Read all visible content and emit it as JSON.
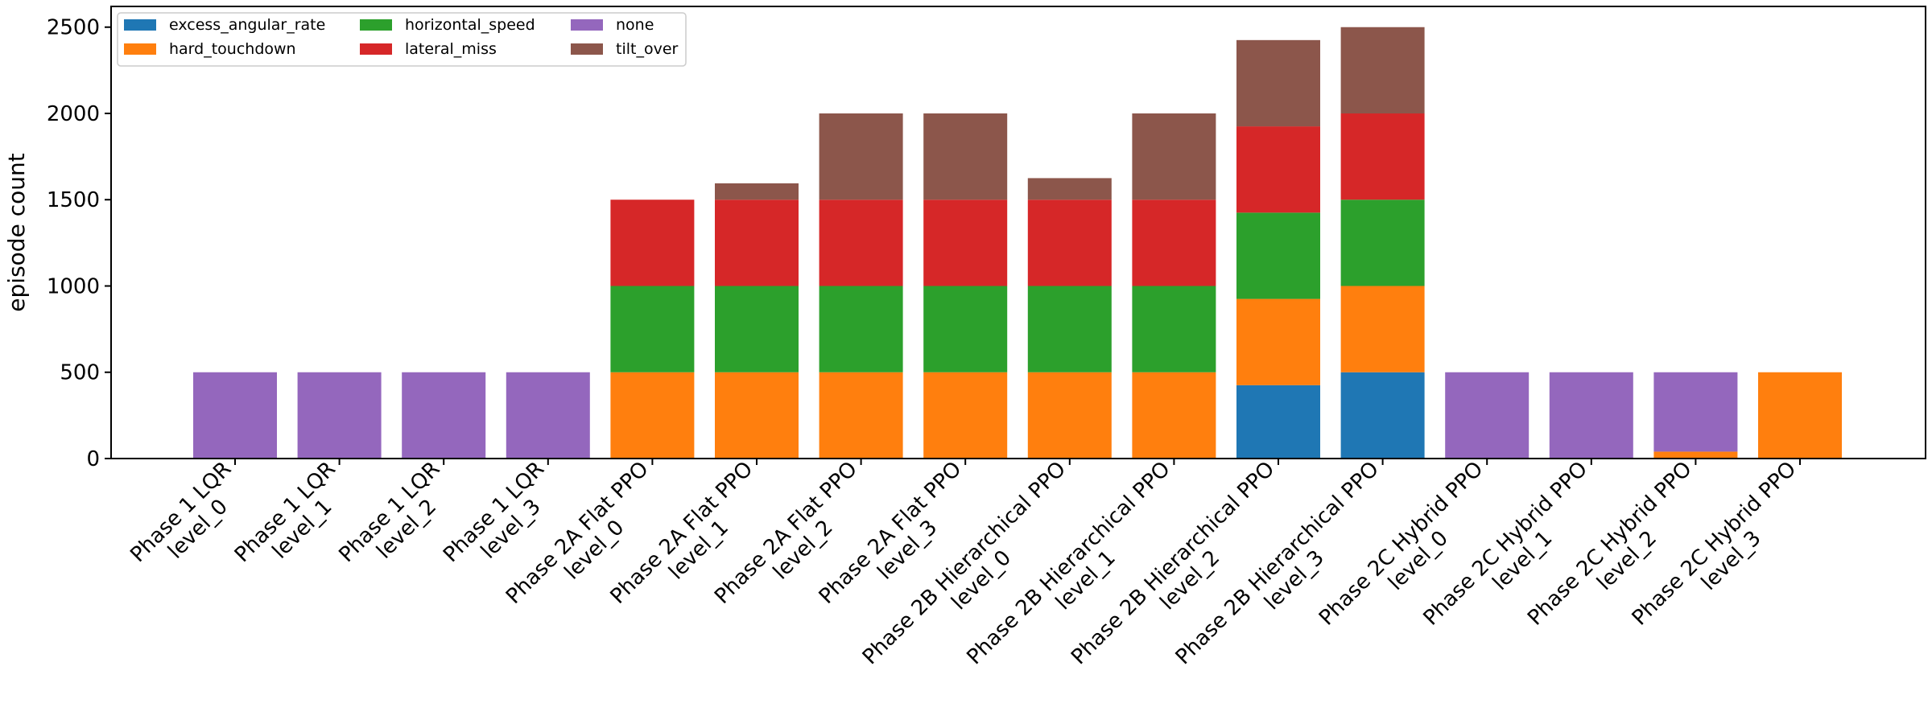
{
  "chart_data": {
    "type": "bar",
    "stacked": true,
    "ylabel": "episode count",
    "xlabel": "",
    "title": "",
    "ylim": [
      0,
      2620
    ],
    "yticks": [
      0,
      500,
      1000,
      1500,
      2000,
      2500
    ],
    "grid": false,
    "legend_position": "top-left",
    "categories": [
      [
        "Phase 1 LQR",
        "level_0"
      ],
      [
        "Phase 1 LQR",
        "level_1"
      ],
      [
        "Phase 1 LQR",
        "level_2"
      ],
      [
        "Phase 1 LQR",
        "level_3"
      ],
      [
        "Phase 2A Flat PPO",
        "level_0"
      ],
      [
        "Phase 2A Flat PPO",
        "level_1"
      ],
      [
        "Phase 2A Flat PPO",
        "level_2"
      ],
      [
        "Phase 2A Flat PPO",
        "level_3"
      ],
      [
        "Phase 2B Hierarchical PPO",
        "level_0"
      ],
      [
        "Phase 2B Hierarchical PPO",
        "level_1"
      ],
      [
        "Phase 2B Hierarchical PPO",
        "level_2"
      ],
      [
        "Phase 2B Hierarchical PPO",
        "level_3"
      ],
      [
        "Phase 2C Hybrid PPO",
        "level_0"
      ],
      [
        "Phase 2C Hybrid PPO",
        "level_1"
      ],
      [
        "Phase 2C Hybrid PPO",
        "level_2"
      ],
      [
        "Phase 2C Hybrid PPO",
        "level_3"
      ]
    ],
    "series": [
      {
        "name": "excess_angular_rate",
        "color": "#1f77b4",
        "values": [
          0,
          0,
          0,
          0,
          0,
          0,
          0,
          0,
          0,
          0,
          425,
          500,
          0,
          0,
          0,
          0
        ]
      },
      {
        "name": "hard_touchdown",
        "color": "#ff7f0e",
        "values": [
          0,
          0,
          0,
          0,
          500,
          500,
          500,
          500,
          500,
          500,
          500,
          500,
          0,
          0,
          40,
          500
        ]
      },
      {
        "name": "horizontal_speed",
        "color": "#2ca02c",
        "values": [
          0,
          0,
          0,
          0,
          500,
          500,
          500,
          500,
          500,
          500,
          500,
          500,
          0,
          0,
          0,
          0
        ]
      },
      {
        "name": "lateral_miss",
        "color": "#d62728",
        "values": [
          0,
          0,
          0,
          0,
          500,
          500,
          500,
          500,
          500,
          500,
          500,
          500,
          0,
          0,
          0,
          0
        ]
      },
      {
        "name": "none",
        "color": "#9467bd",
        "values": [
          500,
          500,
          500,
          500,
          0,
          0,
          0,
          0,
          0,
          0,
          0,
          0,
          500,
          500,
          460,
          0
        ]
      },
      {
        "name": "tilt_over",
        "color": "#8c564b",
        "values": [
          0,
          0,
          0,
          0,
          0,
          95,
          500,
          500,
          125,
          500,
          500,
          500,
          0,
          0,
          0,
          0
        ]
      }
    ]
  }
}
